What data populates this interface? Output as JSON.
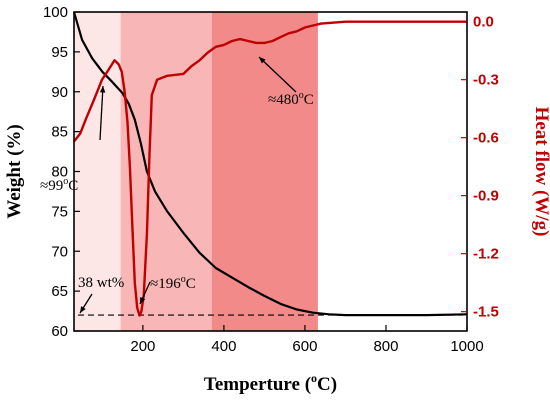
{
  "chart_data": {
    "type": "line",
    "xlabel": "Temperture (°C)",
    "xlabel_parts": {
      "pre": "Temperture (",
      "sup": "o",
      "post": "C)"
    },
    "ylabel_left": "Weight (%)",
    "ylabel_right": "Heat flow (W/g)",
    "xlim": [
      30,
      1000
    ],
    "ylim_left": [
      60,
      100
    ],
    "ylim_right": [
      -1.6,
      0.05
    ],
    "x_ticks": [
      200,
      400,
      600,
      800,
      1000
    ],
    "y_ticks_left": [
      60,
      65,
      70,
      75,
      80,
      85,
      90,
      95,
      100
    ],
    "y_ticks_right": [
      0.0,
      -0.3,
      -0.6,
      -0.9,
      -1.2,
      -1.5
    ],
    "y_tick_labels_right": [
      "0.0",
      "-0.3",
      "-0.6",
      "-0.9",
      "-1.2",
      "-1.5"
    ],
    "shaded_regions": [
      {
        "from": 30,
        "to": 145,
        "color": "#fde6e6"
      },
      {
        "from": 145,
        "to": 370,
        "color": "#f9b6b6"
      },
      {
        "from": 370,
        "to": 632,
        "color": "#f38a8a"
      }
    ],
    "series": [
      {
        "axis": "left",
        "color": "#000000",
        "x": [
          30,
          50,
          75,
          100,
          125,
          150,
          165,
          180,
          195,
          210,
          230,
          260,
          300,
          340,
          380,
          420,
          460,
          500,
          540,
          580,
          620,
          660,
          700,
          760,
          820,
          900,
          1000
        ],
        "y": [
          100,
          96.5,
          94.2,
          92.5,
          91.2,
          89.8,
          88.5,
          86.5,
          83.5,
          80.0,
          77.5,
          75.0,
          72.3,
          69.8,
          67.9,
          66.7,
          65.5,
          64.4,
          63.4,
          62.7,
          62.3,
          62.1,
          62.0,
          62.0,
          62.0,
          62.0,
          62.1
        ]
      },
      {
        "axis": "right",
        "color": "#c00000",
        "x": [
          30,
          45,
          60,
          80,
          99,
          115,
          130,
          140,
          148,
          155,
          162,
          168,
          174,
          180,
          186,
          192,
          196,
          202,
          210,
          216,
          222,
          235,
          260,
          300,
          320,
          340,
          360,
          380,
          400,
          420,
          440,
          460,
          480,
          500,
          520,
          540,
          560,
          580,
          600,
          620,
          640,
          700,
          800,
          900,
          1000
        ],
        "y": [
          -0.62,
          -0.58,
          -0.5,
          -0.4,
          -0.3,
          -0.25,
          -0.2,
          -0.22,
          -0.26,
          -0.36,
          -0.52,
          -0.75,
          -1.05,
          -1.35,
          -1.48,
          -1.52,
          -1.5,
          -1.42,
          -1.1,
          -0.7,
          -0.38,
          -0.3,
          -0.28,
          -0.27,
          -0.23,
          -0.2,
          -0.16,
          -0.13,
          -0.12,
          -0.1,
          -0.09,
          -0.1,
          -0.11,
          -0.11,
          -0.1,
          -0.08,
          -0.06,
          -0.05,
          -0.03,
          -0.02,
          -0.01,
          0.0,
          0.0,
          0.0,
          0.0
        ]
      }
    ],
    "reference_line": {
      "y": 62,
      "axis": "left",
      "style": "dashed",
      "from": 30,
      "to": 1000
    },
    "annotations": [
      {
        "text": "≈99°C",
        "pre": "≈99",
        "sup": "o",
        "post": "C",
        "x": 99,
        "y": -0.3
      },
      {
        "text": "≈196°C",
        "pre": "≈196",
        "sup": "o",
        "post": "C",
        "x": 196,
        "y": -1.52
      },
      {
        "text": "≈480°C",
        "pre": "≈480",
        "sup": "o",
        "post": "C",
        "x": 480,
        "y": -0.11
      },
      {
        "text": "38 wt%",
        "pre": "38 wt%",
        "sup": "",
        "post": "",
        "x": 40,
        "y": 62
      }
    ]
  }
}
